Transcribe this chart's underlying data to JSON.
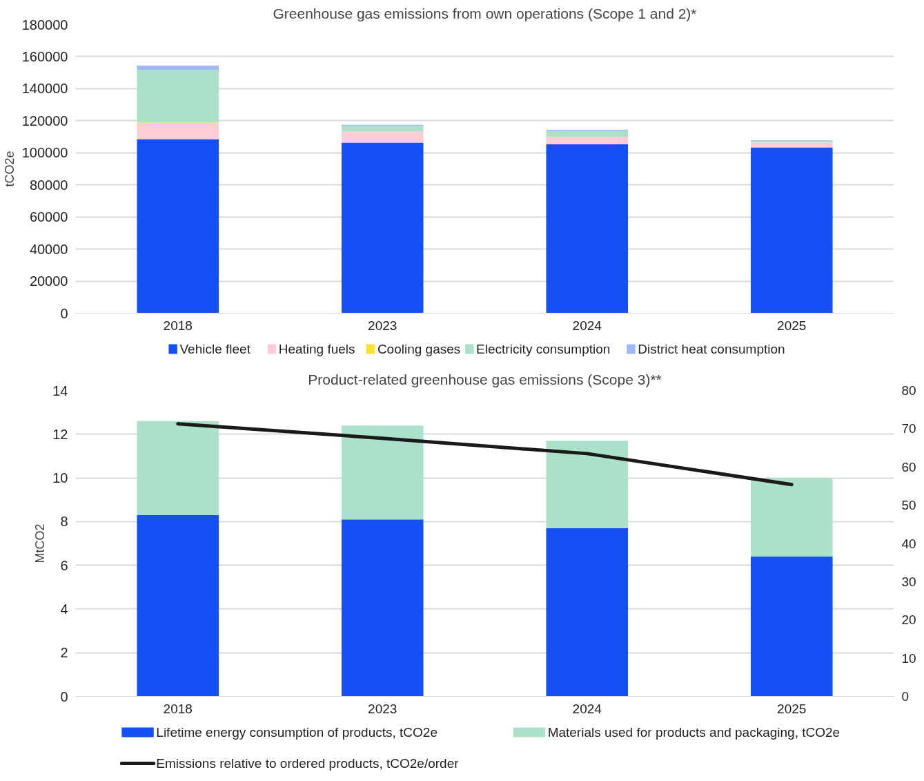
{
  "chart_data": [
    {
      "type": "bar",
      "title": "Greenhouse gas emissions from own operations (Scope 1 and 2)*",
      "ylabel": "tCO2e",
      "categories": [
        "2018",
        "2023",
        "2024",
        "2025"
      ],
      "stacked": true,
      "grid": "y",
      "legend": "bottom",
      "ylim": [
        0,
        180000
      ],
      "yticks": [
        0,
        20000,
        40000,
        60000,
        80000,
        100000,
        120000,
        140000,
        160000,
        180000
      ],
      "series": [
        {
          "name": "Vehicle fleet",
          "color": "#1550f5",
          "values": [
            108500,
            106400,
            105400,
            103300
          ]
        },
        {
          "name": "Heating fuels",
          "color": "#ffccd5",
          "values": [
            9900,
            7000,
            4500,
            3100
          ]
        },
        {
          "name": "Cooling gases",
          "color": "#ffe033",
          "values": [
            500,
            null,
            null,
            null
          ]
        },
        {
          "name": "Electricity consumption",
          "color": "#abe1c8",
          "values": [
            32800,
            3500,
            3800,
            900
          ]
        },
        {
          "name": "District heat consumption",
          "color": "#a0b8f5",
          "values": [
            2700,
            600,
            700,
            500
          ]
        }
      ]
    },
    {
      "type": "bar",
      "title": "Product-related greenhouse gas emissions (Scope 3)**",
      "ylabel": "MtCO2",
      "categories": [
        "2018",
        "2023",
        "2024",
        "2025"
      ],
      "stacked": true,
      "grid": "y",
      "legend": "bottom",
      "ylim": [
        0,
        14
      ],
      "yticks": [
        0,
        2,
        4,
        6,
        8,
        10,
        12,
        14
      ],
      "y2lim": [
        0,
        80
      ],
      "y2ticks": [
        0,
        10,
        20,
        30,
        40,
        50,
        60,
        70,
        80
      ],
      "series": [
        {
          "name": "Lifetime energy consumption of products, tCO2e",
          "color": "#1550f5",
          "values": [
            8.3,
            8.1,
            7.7,
            6.4
          ]
        },
        {
          "name": "Materials used for products and packaging, tCO2e",
          "color": "#abe1c8",
          "values": [
            4.3,
            4.3,
            4.0,
            3.6
          ]
        },
        {
          "name": "Emissions relative to ordered products, tCO2e/order",
          "type": "line",
          "axis": "y2",
          "color": "#1a1a1a",
          "values": [
            71.3,
            67.5,
            63.5,
            55.4
          ]
        }
      ]
    }
  ]
}
